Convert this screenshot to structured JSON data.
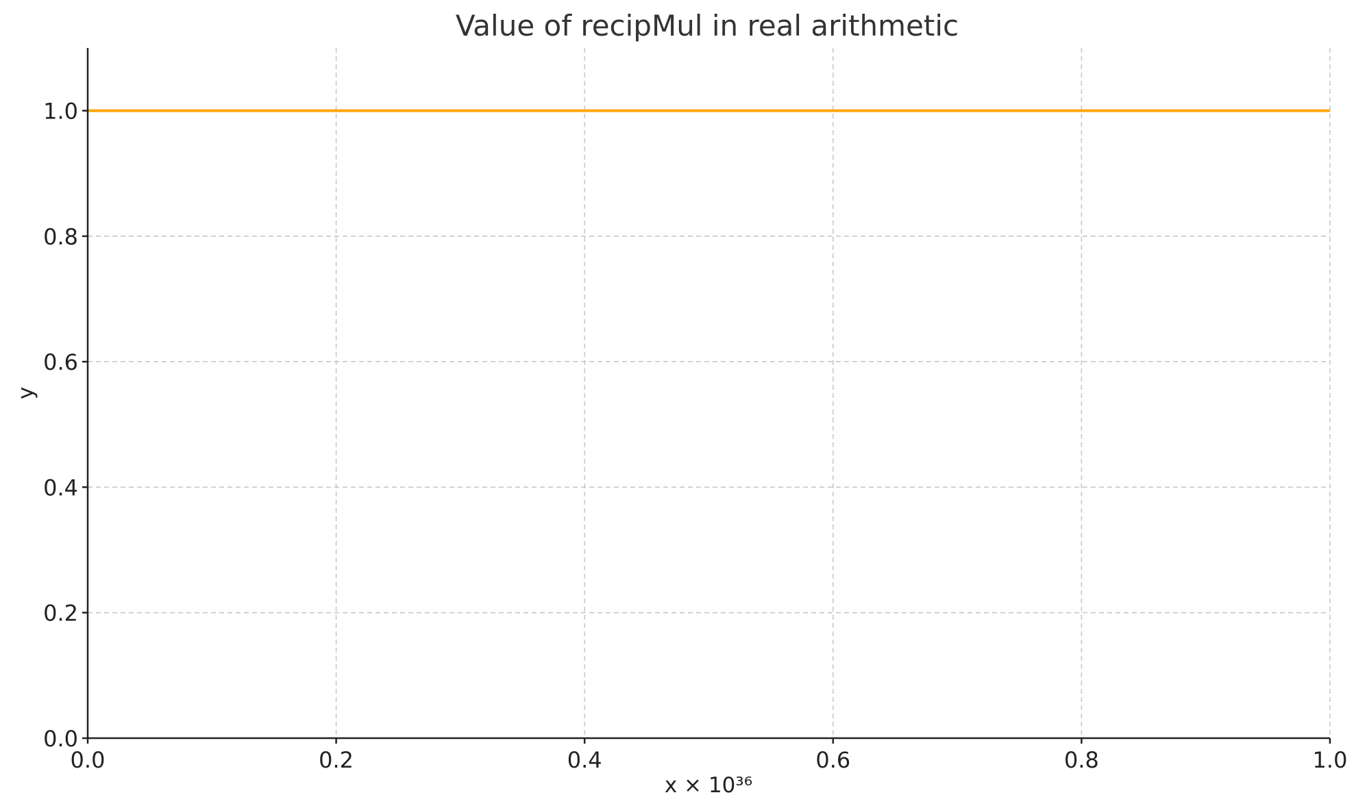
{
  "chart_data": {
    "type": "line",
    "title": "Value of recipMul in real arithmetic",
    "xlabel": "x × 10³⁶",
    "ylabel": "y",
    "xlim": [
      0.0,
      1.0
    ],
    "ylim": [
      0.0,
      1.1
    ],
    "x_ticks": [
      0.0,
      0.2,
      0.4,
      0.6,
      0.8,
      1.0
    ],
    "x_tick_labels": [
      "0.0",
      "0.2",
      "0.4",
      "0.6",
      "0.8",
      "1.0"
    ],
    "y_ticks": [
      0.0,
      0.2,
      0.4,
      0.6,
      0.8,
      1.0
    ],
    "y_tick_labels": [
      "0.0",
      "0.2",
      "0.4",
      "0.6",
      "0.8",
      "1.0"
    ],
    "grid": true,
    "legend": "none",
    "series": [
      {
        "color": "#FFA500",
        "x": [
          0.0,
          0.2,
          0.4,
          0.6,
          0.8,
          1.0
        ],
        "y": [
          1.0,
          1.0,
          1.0,
          1.0,
          1.0,
          1.0
        ]
      }
    ]
  }
}
